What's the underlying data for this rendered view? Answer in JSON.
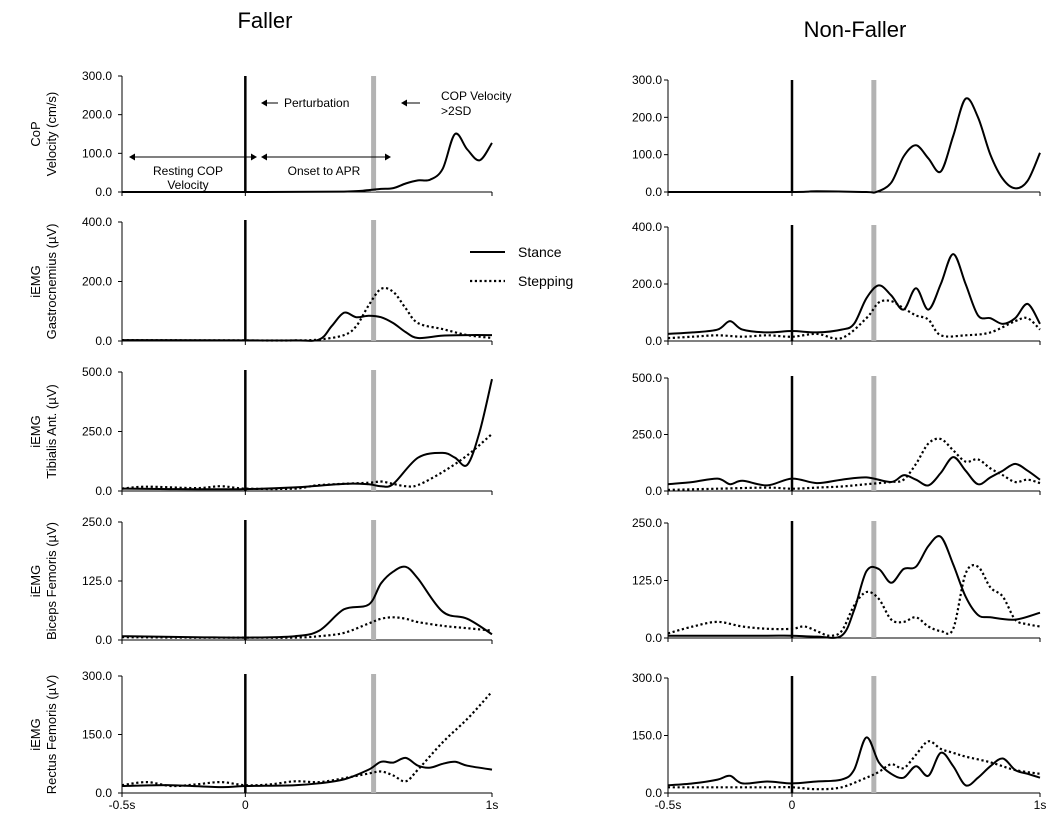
{
  "figure": {
    "left_title": "Faller",
    "right_title": "Non-Faller",
    "x_ticks": [
      "-0.5s",
      "0",
      "1s"
    ],
    "legend": {
      "stance": "Stance",
      "stepping": "Stepping"
    },
    "annotations": {
      "perturbation": "Perturbation",
      "cop_velocity_line1": "COP Velocity",
      "cop_velocity_line2": ">2SD",
      "resting_line1": "Resting COP",
      "resting_line2": "Velocity",
      "onset": "Onset to APR"
    },
    "colors": {
      "line": "#000000",
      "apr_marker": "#b3b3b3"
    }
  },
  "chart_data": [
    {
      "type": "line",
      "panel": "Faller",
      "row": 1,
      "ylabel": [
        "CoP",
        "Velocity (cm/s)"
      ],
      "yticks": [
        "0.0",
        "100.0",
        "200.0",
        "300.0"
      ],
      "ylim": [
        0,
        300
      ],
      "xlim": [
        -0.5,
        1.0
      ],
      "series": [
        {
          "style": "solid",
          "x": [
            -0.5,
            0.0,
            0.4,
            0.5,
            0.55,
            0.6,
            0.65,
            0.7,
            0.75,
            0.8,
            0.85,
            0.9,
            0.95,
            1.0
          ],
          "y": [
            0,
            0,
            1,
            5,
            8,
            10,
            22,
            30,
            32,
            60,
            150,
            110,
            82,
            127
          ]
        }
      ]
    },
    {
      "type": "line",
      "panel": "Faller",
      "row": 2,
      "ylabel": [
        "iEMG",
        "Gastrocnemius (µV)"
      ],
      "yticks": [
        "0.0",
        "200.0",
        "400.0"
      ],
      "ylim": [
        0,
        400
      ],
      "xlim": [
        -0.5,
        1.0
      ],
      "series": [
        {
          "name": "Stance",
          "style": "solid",
          "x": [
            -0.5,
            0.0,
            0.2,
            0.3,
            0.35,
            0.4,
            0.45,
            0.5,
            0.55,
            0.6,
            0.65,
            0.7,
            0.8,
            0.9,
            1.0
          ],
          "y": [
            3,
            2,
            2,
            5,
            50,
            95,
            80,
            85,
            80,
            60,
            30,
            10,
            18,
            20,
            20
          ]
        },
        {
          "name": "Stepping",
          "style": "dotted",
          "x": [
            -0.5,
            0.0,
            0.2,
            0.3,
            0.4,
            0.45,
            0.5,
            0.55,
            0.6,
            0.65,
            0.7,
            0.8,
            0.9,
            1.0
          ],
          "y": [
            3,
            2,
            2,
            5,
            20,
            50,
            120,
            175,
            165,
            110,
            60,
            40,
            20,
            10
          ]
        }
      ]
    },
    {
      "type": "line",
      "panel": "Faller",
      "row": 3,
      "ylabel": [
        "iEMG",
        "Tibialis Ant. (µV)"
      ],
      "yticks": [
        "0.0",
        "250.0",
        "500.0"
      ],
      "ylim": [
        0,
        500
      ],
      "xlim": [
        -0.5,
        1.0
      ],
      "series": [
        {
          "name": "Stance",
          "style": "solid",
          "x": [
            -0.5,
            -0.3,
            0.0,
            0.2,
            0.4,
            0.5,
            0.55,
            0.6,
            0.7,
            0.8,
            0.85,
            0.9,
            0.95,
            1.0
          ],
          "y": [
            10,
            8,
            8,
            15,
            30,
            28,
            20,
            30,
            140,
            160,
            140,
            110,
            250,
            470
          ]
        },
        {
          "name": "Stepping",
          "style": "dotted",
          "x": [
            -0.5,
            -0.4,
            -0.2,
            -0.1,
            0.0,
            0.2,
            0.3,
            0.5,
            0.55,
            0.6,
            0.65,
            0.7,
            0.8,
            0.9,
            1.0
          ],
          "y": [
            10,
            18,
            12,
            20,
            10,
            10,
            25,
            35,
            40,
            30,
            20,
            25,
            80,
            150,
            240
          ]
        }
      ]
    },
    {
      "type": "line",
      "panel": "Faller",
      "row": 4,
      "ylabel": [
        "iEMG",
        "Biceps Femoris (µV)"
      ],
      "yticks": [
        "0.0",
        "125.0",
        "250.0"
      ],
      "ylim": [
        0,
        250
      ],
      "xlim": [
        -0.5,
        1.0
      ],
      "series": [
        {
          "name": "Stance",
          "style": "solid",
          "x": [
            -0.5,
            -0.2,
            0.0,
            0.2,
            0.3,
            0.4,
            0.5,
            0.55,
            0.6,
            0.65,
            0.7,
            0.8,
            0.9,
            1.0
          ],
          "y": [
            8,
            6,
            5,
            8,
            20,
            65,
            75,
            120,
            145,
            155,
            130,
            60,
            45,
            12
          ]
        },
        {
          "name": "Stepping",
          "style": "dotted",
          "x": [
            -0.5,
            -0.2,
            0.0,
            0.2,
            0.3,
            0.4,
            0.5,
            0.55,
            0.6,
            0.65,
            0.7,
            0.8,
            0.9,
            1.0
          ],
          "y": [
            6,
            5,
            5,
            5,
            8,
            15,
            35,
            45,
            48,
            45,
            38,
            30,
            25,
            20
          ]
        }
      ]
    },
    {
      "type": "line",
      "panel": "Faller",
      "row": 5,
      "ylabel": [
        "iEMG",
        "Rectus Femoris (µV)"
      ],
      "yticks": [
        "0.0",
        "150.0",
        "300.0"
      ],
      "ylim": [
        0,
        300
      ],
      "xlim": [
        -0.5,
        1.0
      ],
      "series": [
        {
          "name": "Stance",
          "style": "solid",
          "x": [
            -0.5,
            -0.3,
            -0.1,
            0.0,
            0.2,
            0.3,
            0.4,
            0.5,
            0.55,
            0.6,
            0.65,
            0.7,
            0.75,
            0.8,
            0.85,
            0.9,
            1.0
          ],
          "y": [
            18,
            20,
            15,
            18,
            20,
            25,
            35,
            60,
            80,
            78,
            90,
            70,
            65,
            75,
            80,
            70,
            60
          ]
        },
        {
          "name": "Stepping",
          "style": "dotted",
          "x": [
            -0.5,
            -0.4,
            -0.3,
            -0.2,
            -0.1,
            0.0,
            0.1,
            0.2,
            0.3,
            0.4,
            0.5,
            0.55,
            0.6,
            0.65,
            0.7,
            0.8,
            0.9,
            1.0
          ],
          "y": [
            20,
            28,
            18,
            22,
            28,
            20,
            22,
            30,
            28,
            38,
            50,
            55,
            45,
            30,
            60,
            130,
            190,
            260
          ]
        }
      ]
    },
    {
      "type": "line",
      "panel": "Non-Faller",
      "row": 1,
      "ylabel": [],
      "yticks": [
        "0.0",
        "100.0",
        "200.0",
        "300.0"
      ],
      "ylim": [
        0,
        300
      ],
      "xlim": [
        -0.5,
        1.0
      ],
      "series": [
        {
          "style": "solid",
          "x": [
            -0.5,
            0.0,
            0.1,
            0.3,
            0.34,
            0.4,
            0.45,
            0.5,
            0.55,
            0.6,
            0.65,
            0.7,
            0.75,
            0.8,
            0.85,
            0.9,
            0.95,
            1.0
          ],
          "y": [
            0,
            0,
            2,
            0,
            0,
            25,
            95,
            125,
            90,
            55,
            150,
            250,
            200,
            100,
            35,
            10,
            30,
            105
          ]
        }
      ]
    },
    {
      "type": "line",
      "panel": "Non-Faller",
      "row": 2,
      "ylabel": [],
      "yticks": [
        "0.0",
        "200.0",
        "400.0"
      ],
      "ylim": [
        0,
        400
      ],
      "xlim": [
        -0.5,
        1.0
      ],
      "series": [
        {
          "name": "Stance",
          "style": "solid",
          "x": [
            -0.5,
            -0.4,
            -0.3,
            -0.25,
            -0.2,
            -0.1,
            0.0,
            0.1,
            0.2,
            0.25,
            0.3,
            0.35,
            0.4,
            0.45,
            0.5,
            0.55,
            0.6,
            0.65,
            0.7,
            0.75,
            0.8,
            0.85,
            0.9,
            0.95,
            1.0
          ],
          "y": [
            25,
            30,
            40,
            70,
            40,
            30,
            35,
            30,
            40,
            60,
            150,
            195,
            160,
            110,
            185,
            110,
            200,
            305,
            200,
            90,
            80,
            60,
            80,
            130,
            60
          ]
        },
        {
          "name": "Stepping",
          "style": "dotted",
          "x": [
            -0.5,
            -0.4,
            -0.3,
            -0.2,
            -0.1,
            0.0,
            0.1,
            0.2,
            0.3,
            0.35,
            0.4,
            0.45,
            0.5,
            0.55,
            0.6,
            0.7,
            0.8,
            0.9,
            0.95,
            1.0
          ],
          "y": [
            10,
            15,
            20,
            15,
            20,
            15,
            25,
            10,
            80,
            135,
            140,
            115,
            90,
            75,
            20,
            20,
            30,
            70,
            80,
            40
          ]
        }
      ]
    },
    {
      "type": "line",
      "panel": "Non-Faller",
      "row": 3,
      "ylabel": [],
      "yticks": [
        "0.0",
        "250.0",
        "500.0"
      ],
      "ylim": [
        0,
        500
      ],
      "xlim": [
        -0.5,
        1.0
      ],
      "series": [
        {
          "name": "Stance",
          "style": "solid",
          "x": [
            -0.5,
            -0.4,
            -0.3,
            -0.25,
            -0.2,
            -0.1,
            0.0,
            0.1,
            0.2,
            0.3,
            0.4,
            0.45,
            0.5,
            0.55,
            0.6,
            0.65,
            0.7,
            0.75,
            0.8,
            0.85,
            0.9,
            0.95,
            1.0
          ],
          "y": [
            30,
            40,
            55,
            30,
            45,
            25,
            55,
            35,
            50,
            60,
            40,
            70,
            50,
            25,
            80,
            150,
            90,
            30,
            60,
            90,
            120,
            90,
            50
          ]
        },
        {
          "name": "Stepping",
          "style": "dotted",
          "x": [
            -0.5,
            -0.3,
            -0.1,
            0.0,
            0.1,
            0.2,
            0.3,
            0.4,
            0.45,
            0.5,
            0.55,
            0.6,
            0.65,
            0.7,
            0.75,
            0.8,
            0.85,
            0.9,
            0.95,
            1.0
          ],
          "y": [
            5,
            10,
            15,
            10,
            15,
            20,
            30,
            40,
            50,
            120,
            210,
            230,
            180,
            130,
            140,
            100,
            70,
            40,
            50,
            35
          ]
        }
      ]
    },
    {
      "type": "line",
      "panel": "Non-Faller",
      "row": 4,
      "ylabel": [],
      "yticks": [
        "0.0",
        "125.0",
        "250.0"
      ],
      "ylim": [
        0,
        250
      ],
      "xlim": [
        -0.5,
        1.0
      ],
      "series": [
        {
          "name": "Stance",
          "style": "solid",
          "x": [
            -0.5,
            -0.3,
            -0.1,
            0.0,
            0.1,
            0.2,
            0.25,
            0.3,
            0.35,
            0.4,
            0.45,
            0.5,
            0.55,
            0.6,
            0.65,
            0.7,
            0.75,
            0.8,
            0.9,
            1.0
          ],
          "y": [
            5,
            5,
            5,
            5,
            3,
            5,
            60,
            145,
            150,
            120,
            150,
            155,
            200,
            220,
            160,
            90,
            50,
            45,
            40,
            55
          ]
        },
        {
          "name": "Stepping",
          "style": "dotted",
          "x": [
            -0.5,
            -0.4,
            -0.3,
            -0.2,
            -0.1,
            0.0,
            0.05,
            0.1,
            0.15,
            0.2,
            0.25,
            0.3,
            0.35,
            0.4,
            0.45,
            0.5,
            0.55,
            0.6,
            0.65,
            0.7,
            0.75,
            0.8,
            0.85,
            0.9,
            0.95,
            1.0
          ],
          "y": [
            10,
            25,
            35,
            25,
            20,
            20,
            25,
            15,
            5,
            15,
            70,
            100,
            85,
            40,
            35,
            45,
            25,
            15,
            20,
            140,
            155,
            110,
            90,
            40,
            30,
            25
          ]
        }
      ]
    },
    {
      "type": "line",
      "panel": "Non-Faller",
      "row": 5,
      "ylabel": [],
      "yticks": [
        "0.0",
        "150.0",
        "300.0"
      ],
      "ylim": [
        0,
        300
      ],
      "xlim": [
        -0.5,
        1.0
      ],
      "series": [
        {
          "name": "Stance",
          "style": "solid",
          "x": [
            -0.5,
            -0.4,
            -0.3,
            -0.25,
            -0.2,
            -0.1,
            0.0,
            0.1,
            0.2,
            0.25,
            0.3,
            0.35,
            0.4,
            0.45,
            0.5,
            0.55,
            0.6,
            0.65,
            0.7,
            0.75,
            0.8,
            0.85,
            0.9,
            0.95,
            1.0
          ],
          "y": [
            20,
            25,
            35,
            45,
            25,
            30,
            25,
            30,
            35,
            60,
            145,
            80,
            50,
            40,
            70,
            45,
            105,
            70,
            20,
            40,
            70,
            90,
            60,
            50,
            40
          ]
        },
        {
          "name": "Stepping",
          "style": "dotted",
          "x": [
            -0.5,
            -0.3,
            -0.1,
            0.0,
            0.1,
            0.2,
            0.3,
            0.35,
            0.4,
            0.45,
            0.5,
            0.55,
            0.6,
            0.65,
            0.7,
            0.8,
            0.9,
            1.0
          ],
          "y": [
            15,
            15,
            15,
            15,
            10,
            15,
            40,
            55,
            75,
            65,
            100,
            135,
            115,
            105,
            95,
            80,
            60,
            50
          ]
        }
      ]
    }
  ]
}
